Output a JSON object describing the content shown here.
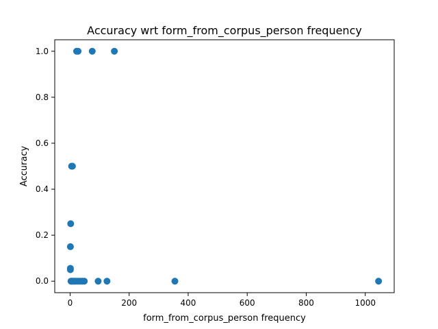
{
  "chart_data": {
    "type": "scatter",
    "title": "Accuracy wrt form_from_corpus_person frequency",
    "xlabel": "form_from_corpus_person frequency",
    "ylabel": "Accuracy",
    "xlim": [
      -52,
      1098
    ],
    "ylim": [
      -0.05,
      1.05
    ],
    "xticks": [
      0,
      200,
      400,
      600,
      800,
      1000
    ],
    "yticks": [
      0.0,
      0.2,
      0.4,
      0.6,
      0.8,
      1.0
    ],
    "xtick_labels": [
      "0",
      "200",
      "400",
      "600",
      "800",
      "1000"
    ],
    "ytick_labels": [
      "0.0",
      "0.2",
      "0.4",
      "0.6",
      "0.8",
      "1.0"
    ],
    "grid": false,
    "marker_color": "#1f77b4",
    "points": [
      {
        "x": 22,
        "y": 1.0
      },
      {
        "x": 27,
        "y": 1.0
      },
      {
        "x": 75,
        "y": 1.0
      },
      {
        "x": 150,
        "y": 1.0
      },
      {
        "x": 5,
        "y": 0.5
      },
      {
        "x": 8,
        "y": 0.5
      },
      {
        "x": 2,
        "y": 0.25
      },
      {
        "x": 1,
        "y": 0.15
      },
      {
        "x": 1,
        "y": 0.056
      },
      {
        "x": 1,
        "y": 0.05
      },
      {
        "x": 3,
        "y": 0.0
      },
      {
        "x": 6,
        "y": 0.0
      },
      {
        "x": 10,
        "y": 0.0
      },
      {
        "x": 14,
        "y": 0.0
      },
      {
        "x": 18,
        "y": 0.0
      },
      {
        "x": 24,
        "y": 0.0
      },
      {
        "x": 30,
        "y": 0.0
      },
      {
        "x": 36,
        "y": 0.0
      },
      {
        "x": 42,
        "y": 0.0
      },
      {
        "x": 48,
        "y": 0.0
      },
      {
        "x": 95,
        "y": 0.0
      },
      {
        "x": 125,
        "y": 0.0
      },
      {
        "x": 355,
        "y": 0.0
      },
      {
        "x": 1045,
        "y": 0.0
      }
    ]
  }
}
